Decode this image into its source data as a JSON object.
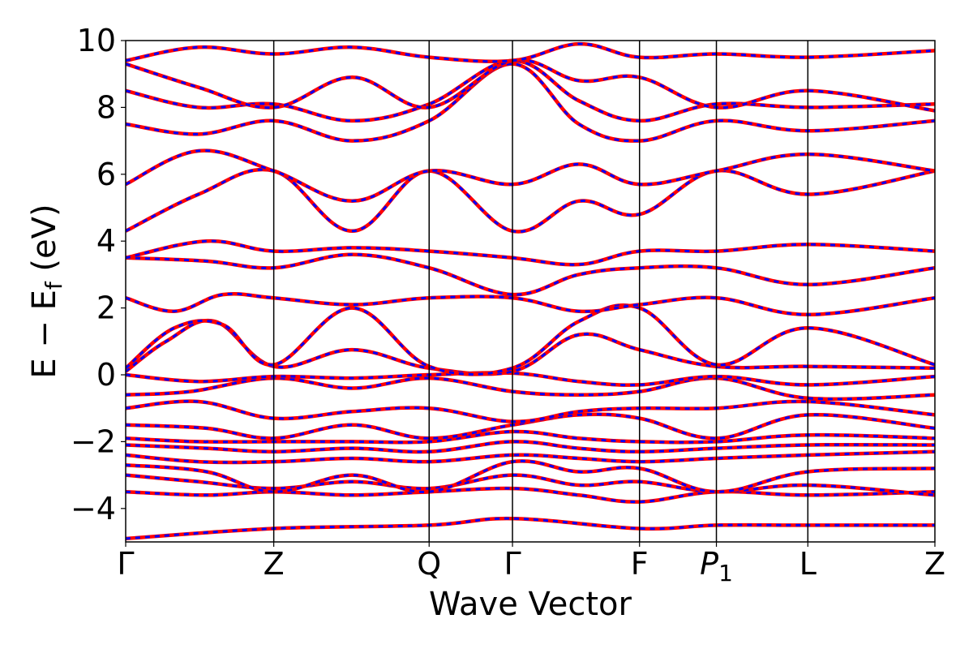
{
  "chart_data": {
    "type": "line",
    "xlabel": "Wave Vector",
    "ylabel": "E − E",
    "ylabel_sub": "f",
    "ylabel_unit": " (eV)",
    "ylim": [
      -5,
      10
    ],
    "yticks": [
      -4,
      -2,
      0,
      2,
      4,
      6,
      8,
      10
    ],
    "ytick_labels": [
      "−4",
      "−2",
      "0",
      "2",
      "4",
      "6",
      "8",
      "10"
    ],
    "xlim": [
      0,
      1
    ],
    "kpoints": [
      {
        "label": "Γ",
        "pos": 0.0
      },
      {
        "label": "Z",
        "pos": 0.183
      },
      {
        "label": "Q",
        "pos": 0.375
      },
      {
        "label": "Γ",
        "pos": 0.478
      },
      {
        "label": "F",
        "pos": 0.635
      },
      {
        "label": "P",
        "sub": "1",
        "pos": 0.73
      },
      {
        "label": "L",
        "pos": 0.843
      },
      {
        "label": "Z",
        "pos": 1.0
      }
    ],
    "grid": false,
    "legend": "none",
    "series_colors": [
      "#ff0000",
      "#0000ff"
    ],
    "bands": [
      {
        "x": [
          0,
          0.183,
          0.375,
          0.478,
          0.635,
          0.73,
          0.843,
          1
        ],
        "y": [
          -4.9,
          -4.6,
          -4.5,
          -4.3,
          -4.6,
          -4.5,
          -4.5,
          -4.5
        ]
      },
      {
        "x": [
          0,
          0.1,
          0.183,
          0.28,
          0.375,
          0.478,
          0.56,
          0.635,
          0.73,
          0.843,
          1
        ],
        "y": [
          -3.5,
          -3.6,
          -3.5,
          -3.6,
          -3.5,
          -3.4,
          -3.6,
          -3.8,
          -3.5,
          -3.6,
          -3.5
        ]
      },
      {
        "x": [
          0,
          0.09,
          0.183,
          0.28,
          0.375,
          0.478,
          0.56,
          0.635,
          0.73,
          0.843,
          1
        ],
        "y": [
          -3.0,
          -3.2,
          -3.4,
          -3.2,
          -3.4,
          -3.0,
          -3.3,
          -3.2,
          -3.5,
          -3.3,
          -3.6
        ]
      },
      {
        "x": [
          0,
          0.1,
          0.183,
          0.28,
          0.375,
          0.478,
          0.56,
          0.635,
          0.73,
          0.843,
          1
        ],
        "y": [
          -2.7,
          -2.9,
          -3.5,
          -3.0,
          -3.5,
          -2.6,
          -2.9,
          -2.8,
          -3.5,
          -2.9,
          -2.8
        ]
      },
      {
        "x": [
          0,
          0.09,
          0.183,
          0.28,
          0.375,
          0.478,
          0.56,
          0.635,
          0.73,
          0.843,
          1
        ],
        "y": [
          -2.4,
          -2.6,
          -2.6,
          -2.5,
          -2.6,
          -2.4,
          -2.5,
          -2.6,
          -2.5,
          -2.4,
          -2.3
        ]
      },
      {
        "x": [
          0,
          0.1,
          0.183,
          0.28,
          0.375,
          0.478,
          0.56,
          0.635,
          0.73,
          0.843,
          1
        ],
        "y": [
          -2.1,
          -2.2,
          -2.3,
          -2.2,
          -2.3,
          -2.0,
          -2.2,
          -2.3,
          -2.2,
          -2.1,
          -2.1
        ]
      },
      {
        "x": [
          0,
          0.09,
          0.183,
          0.28,
          0.375,
          0.478,
          0.56,
          0.635,
          0.73,
          0.843,
          1
        ],
        "y": [
          -1.9,
          -2.0,
          -2.0,
          -2.0,
          -2.0,
          -1.7,
          -1.9,
          -2.0,
          -2.0,
          -1.8,
          -1.9
        ]
      },
      {
        "x": [
          0,
          0.1,
          0.183,
          0.28,
          0.375,
          0.478,
          0.56,
          0.635,
          0.73,
          0.843,
          1
        ],
        "y": [
          -1.5,
          -1.6,
          -1.9,
          -1.5,
          -1.9,
          -1.5,
          -1.2,
          -1.3,
          -1.9,
          -1.2,
          -1.6
        ]
      },
      {
        "x": [
          0,
          0.09,
          0.183,
          0.28,
          0.375,
          0.478,
          0.56,
          0.635,
          0.73,
          0.843,
          1
        ],
        "y": [
          -1.0,
          -0.8,
          -1.3,
          -1.1,
          -1.0,
          -1.4,
          -1.1,
          -1.0,
          -1.0,
          -0.8,
          -1.2
        ]
      },
      {
        "x": [
          0,
          0.08,
          0.183,
          0.28,
          0.375,
          0.478,
          0.56,
          0.635,
          0.73,
          0.843,
          1
        ],
        "y": [
          -0.6,
          -0.5,
          -0.1,
          -0.4,
          -0.1,
          -0.5,
          -0.6,
          -0.5,
          -0.1,
          -0.7,
          -0.6
        ]
      },
      {
        "x": [
          0,
          0.09,
          0.183,
          0.28,
          0.375,
          0.478,
          0.56,
          0.635,
          0.73,
          0.843,
          1
        ],
        "y": [
          0.0,
          -0.2,
          -0.05,
          -0.1,
          0.0,
          0.05,
          -0.2,
          -0.3,
          -0.05,
          -0.3,
          -0.05
        ]
      },
      {
        "x": [
          0,
          0.05,
          0.11,
          0.183,
          0.28,
          0.375,
          0.478,
          0.56,
          0.635,
          0.73,
          0.843,
          1
        ],
        "y": [
          0.1,
          1.0,
          1.6,
          0.25,
          0.75,
          0.2,
          0.1,
          1.2,
          0.75,
          0.25,
          0.25,
          0.2
        ]
      },
      {
        "x": [
          0,
          0.06,
          0.12,
          0.183,
          0.28,
          0.375,
          0.478,
          0.56,
          0.635,
          0.73,
          0.843,
          1
        ],
        "y": [
          0.2,
          1.4,
          1.5,
          0.3,
          2.0,
          0.25,
          0.2,
          1.6,
          2.0,
          0.3,
          1.4,
          0.3
        ]
      },
      {
        "x": [
          0,
          0.06,
          0.12,
          0.183,
          0.28,
          0.375,
          0.478,
          0.56,
          0.635,
          0.73,
          0.843,
          1
        ],
        "y": [
          2.3,
          1.9,
          2.4,
          2.3,
          2.1,
          2.3,
          2.3,
          1.9,
          2.1,
          2.3,
          1.8,
          2.3
        ]
      },
      {
        "x": [
          0,
          0.1,
          0.183,
          0.28,
          0.375,
          0.478,
          0.56,
          0.635,
          0.73,
          0.843,
          1
        ],
        "y": [
          3.5,
          3.4,
          3.2,
          3.6,
          3.2,
          2.4,
          3.0,
          3.2,
          3.2,
          2.7,
          3.2
        ]
      },
      {
        "x": [
          0,
          0.1,
          0.183,
          0.28,
          0.375,
          0.478,
          0.56,
          0.635,
          0.73,
          0.843,
          1
        ],
        "y": [
          3.5,
          4.0,
          3.7,
          3.8,
          3.7,
          3.5,
          3.3,
          3.7,
          3.7,
          3.9,
          3.7
        ]
      },
      {
        "x": [
          0,
          0.09,
          0.183,
          0.28,
          0.375,
          0.478,
          0.56,
          0.635,
          0.73,
          0.843,
          1
        ],
        "y": [
          4.3,
          5.4,
          6.1,
          4.3,
          6.1,
          4.3,
          5.2,
          4.8,
          6.1,
          5.4,
          6.1
        ]
      },
      {
        "x": [
          0,
          0.09,
          0.183,
          0.28,
          0.375,
          0.478,
          0.56,
          0.635,
          0.73,
          0.843,
          1
        ],
        "y": [
          5.7,
          6.7,
          6.1,
          5.2,
          6.1,
          5.7,
          6.3,
          5.7,
          6.1,
          6.6,
          6.1
        ]
      },
      {
        "x": [
          0,
          0.09,
          0.183,
          0.28,
          0.375,
          0.478,
          0.56,
          0.635,
          0.73,
          0.843,
          1
        ],
        "y": [
          7.5,
          7.2,
          7.6,
          7.0,
          7.6,
          9.3,
          7.5,
          7.0,
          7.6,
          7.3,
          7.6
        ]
      },
      {
        "x": [
          0,
          0.09,
          0.183,
          0.28,
          0.375,
          0.478,
          0.56,
          0.635,
          0.73,
          0.843,
          1
        ],
        "y": [
          8.5,
          8.0,
          8.1,
          7.6,
          8.1,
          9.4,
          8.2,
          7.6,
          8.1,
          8.0,
          8.1
        ]
      },
      {
        "x": [
          0,
          0.09,
          0.183,
          0.28,
          0.375,
          0.478,
          0.56,
          0.635,
          0.73,
          0.843,
          1
        ],
        "y": [
          9.3,
          8.6,
          8.0,
          8.9,
          8.0,
          9.4,
          8.8,
          8.9,
          8.0,
          8.5,
          7.9
        ]
      },
      {
        "x": [
          0,
          0.09,
          0.183,
          0.28,
          0.375,
          0.478,
          0.56,
          0.635,
          0.73,
          0.843,
          1
        ],
        "y": [
          9.4,
          9.8,
          9.6,
          9.8,
          9.5,
          9.4,
          9.9,
          9.5,
          9.6,
          9.5,
          9.7
        ]
      }
    ]
  }
}
